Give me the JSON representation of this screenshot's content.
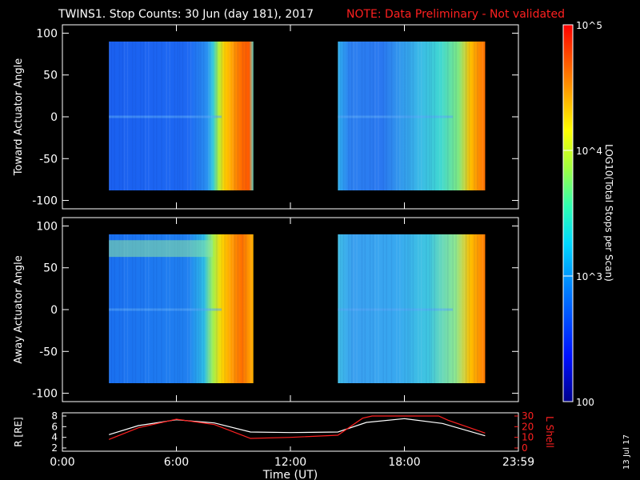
{
  "title": {
    "main": "TWINS1. Stop Counts: 30 Jun (day 181), 2017",
    "note": "NOTE: Data Preliminary - Not validated",
    "note_color": "#ff2020"
  },
  "chart_data": [
    {
      "type": "heatmap",
      "ylabel": "Toward Actuator Angle",
      "ylim": [
        -110,
        110
      ],
      "yticks": [
        "100",
        "50",
        "0",
        "-50",
        "-100"
      ],
      "ytick_values": [
        100,
        50,
        0,
        -50,
        -100
      ],
      "data_blocks": [
        {
          "start_hour": 2.45,
          "end_hour": 10.05,
          "angle_range": [
            -88,
            90
          ]
        },
        {
          "start_hour": 14.5,
          "end_hour": 22.25,
          "angle_range": [
            -88,
            90
          ]
        }
      ]
    },
    {
      "type": "heatmap",
      "ylabel": "Away Actuator Angle",
      "ylim": [
        -110,
        110
      ],
      "yticks": [
        "100",
        "50",
        "0",
        "-50",
        "-100"
      ],
      "ytick_values": [
        100,
        50,
        0,
        -50,
        -100
      ],
      "data_blocks": [
        {
          "start_hour": 2.45,
          "end_hour": 10.05,
          "angle_range": [
            -88,
            90
          ]
        },
        {
          "start_hour": 14.5,
          "end_hour": 22.25,
          "angle_range": [
            -88,
            90
          ]
        }
      ]
    },
    {
      "type": "line",
      "ylabel": "R [RE]",
      "ylabel_right": "L Shell",
      "ylim": [
        2,
        8
      ],
      "yticks": [
        "8",
        "6",
        "4",
        "2"
      ],
      "ytick_values": [
        8,
        6,
        4,
        2
      ],
      "ylim_right": [
        0,
        30
      ],
      "yticks_right": [
        "30",
        "20",
        "10",
        "0"
      ],
      "ytick_values_right": [
        30,
        20,
        10,
        0
      ],
      "series": [
        {
          "color": "#ffffff",
          "x": [
            2.45,
            4,
            6,
            8,
            9.9,
            12,
            14.5,
            16,
            18,
            20,
            22.25
          ],
          "values": [
            4.5,
            6.2,
            7.3,
            6.7,
            5.0,
            4.9,
            5.0,
            6.8,
            7.5,
            6.6,
            4.3
          ]
        },
        {
          "color": "#ff2020",
          "axis": "right",
          "x": [
            2.45,
            4,
            6,
            8,
            9.9,
            12,
            14.5,
            15.8,
            16.3,
            19.8,
            20.3,
            22.25
          ],
          "values": [
            8,
            19,
            27,
            22,
            9,
            10,
            12,
            28,
            30,
            30,
            26,
            14
          ]
        }
      ],
      "xlabel": "Time (UT)",
      "xlim": [
        0,
        24
      ],
      "xticks": [
        "0:00",
        "6:00",
        "12:00",
        "18:00",
        "23:59"
      ],
      "xtick_values": [
        0,
        6,
        12,
        18,
        24
      ]
    }
  ],
  "colorbar": {
    "label": "LOG10(Total Stops per Scan)",
    "ticks": [
      "10^5",
      "10^4",
      "10^3",
      "100"
    ],
    "tick_values": [
      100000,
      10000,
      1000,
      100
    ],
    "range": [
      100,
      100000
    ]
  },
  "date_stamp": "13 Jul 17"
}
